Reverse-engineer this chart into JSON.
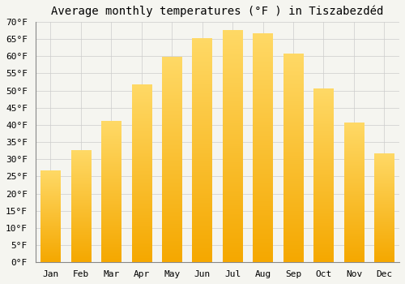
{
  "months": [
    "Jan",
    "Feb",
    "Mar",
    "Apr",
    "May",
    "Jun",
    "Jul",
    "Aug",
    "Sep",
    "Oct",
    "Nov",
    "Dec"
  ],
  "values": [
    26.5,
    32.5,
    41.0,
    51.5,
    59.5,
    65.0,
    67.5,
    66.5,
    60.5,
    50.5,
    40.5,
    31.5
  ],
  "bar_color_bottom": "#F5A800",
  "bar_color_top": "#FFD966",
  "title": "Average monthly temperatures (°F ) in Tiszabezdéd",
  "ylim": [
    0,
    70
  ],
  "yticks": [
    0,
    5,
    10,
    15,
    20,
    25,
    30,
    35,
    40,
    45,
    50,
    55,
    60,
    65,
    70
  ],
  "ytick_labels": [
    "0°F",
    "5°F",
    "10°F",
    "15°F",
    "20°F",
    "25°F",
    "30°F",
    "35°F",
    "40°F",
    "45°F",
    "50°F",
    "55°F",
    "60°F",
    "65°F",
    "70°F"
  ],
  "background_color": "#F5F5F0",
  "plot_bg_color": "#F5F5F0",
  "grid_color": "#CCCCCC",
  "title_fontsize": 10,
  "tick_fontsize": 8,
  "bar_width": 0.65
}
